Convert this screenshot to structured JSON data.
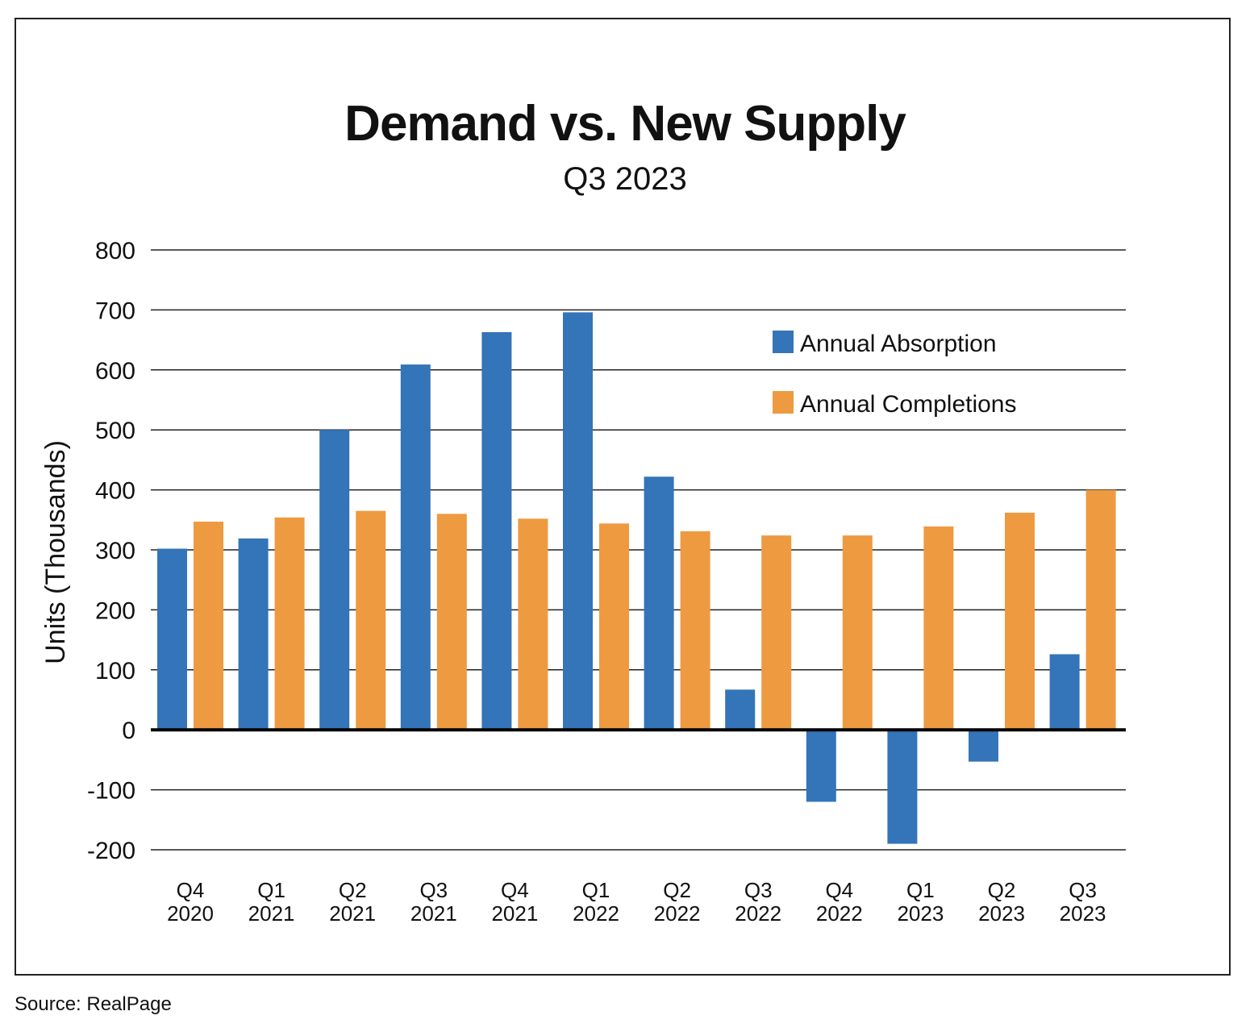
{
  "source": "Source: RealPage",
  "chart_data": {
    "type": "bar",
    "title": "Demand vs. New Supply",
    "subtitle": "Q3 2023",
    "ylabel": "Units (Thousands)",
    "ylim": [
      -200,
      800
    ],
    "yticks": [
      800,
      700,
      600,
      500,
      400,
      300,
      200,
      100,
      0,
      -100,
      -200
    ],
    "categories": [
      [
        "Q4",
        "2020"
      ],
      [
        "Q1",
        "2021"
      ],
      [
        "Q2",
        "2021"
      ],
      [
        "Q3",
        "2021"
      ],
      [
        "Q4",
        "2021"
      ],
      [
        "Q1",
        "2022"
      ],
      [
        "Q2",
        "2022"
      ],
      [
        "Q3",
        "2022"
      ],
      [
        "Q4",
        "2022"
      ],
      [
        "Q1",
        "2023"
      ],
      [
        "Q2",
        "2023"
      ],
      [
        "Q3",
        "2023"
      ]
    ],
    "series": [
      {
        "name": "Annual Absorption",
        "color": "#3474b8",
        "values": [
          302,
          319,
          500,
          609,
          663,
          696,
          422,
          67,
          -120,
          -190,
          -53,
          126
        ]
      },
      {
        "name": "Annual Completions",
        "color": "#ed9a41",
        "values": [
          347,
          354,
          365,
          360,
          352,
          344,
          331,
          324,
          324,
          339,
          362,
          400
        ]
      }
    ],
    "grid": true,
    "legend_position": "top-right"
  }
}
